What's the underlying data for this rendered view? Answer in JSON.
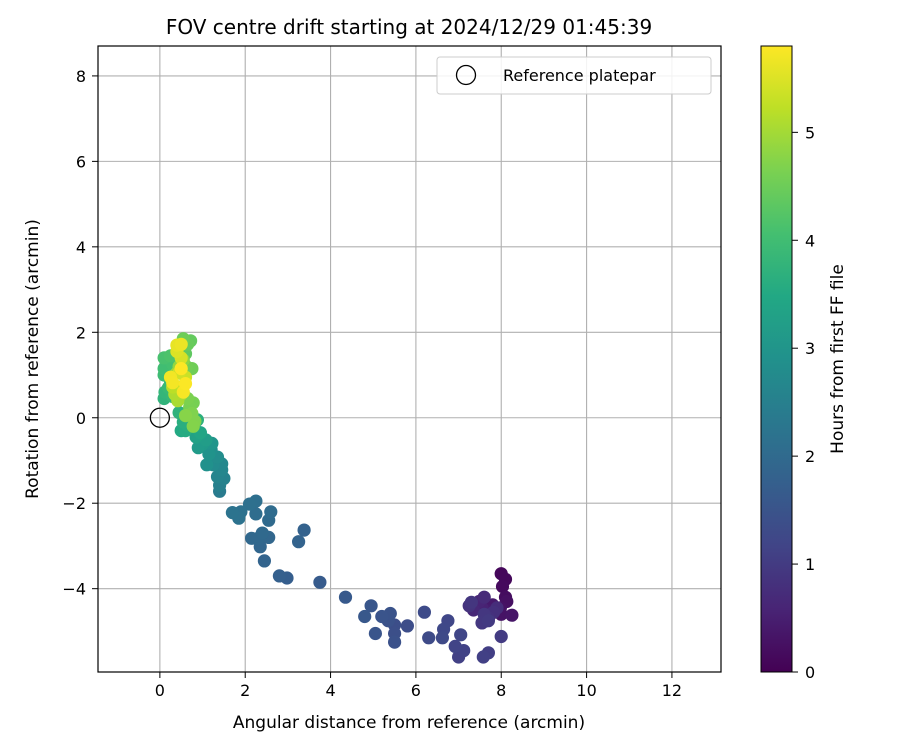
{
  "chart_data": {
    "type": "scatter",
    "title": "FOV centre drift starting at 2024/12/29 01:45:39",
    "xlabel": "Angular distance from reference (arcmin)",
    "ylabel": "Rotation from reference (arcmin)",
    "xlim": [
      -1.45,
      13.15
    ],
    "ylim": [
      -5.95,
      8.7
    ],
    "xticks": [
      0,
      2,
      4,
      6,
      8,
      10,
      12
    ],
    "yticks": [
      -4,
      -2,
      0,
      2,
      4,
      6,
      8
    ],
    "grid": true,
    "legend": {
      "position": "top-right",
      "entries": [
        "Reference platepar"
      ]
    },
    "colorbar": {
      "label": "Hours from first FF file",
      "min": 0,
      "max": 5.8,
      "ticks": [
        0,
        1,
        2,
        3,
        4,
        5
      ],
      "colormap": "viridis"
    },
    "reference_point": {
      "x": 0,
      "y": 0,
      "name": "Reference platepar"
    },
    "points": [
      [
        8.0,
        -3.65,
        0.1
      ],
      [
        8.1,
        -3.78,
        0.12
      ],
      [
        8.03,
        -3.95,
        0.15
      ],
      [
        8.1,
        -4.2,
        0.2
      ],
      [
        8.13,
        -4.3,
        0.25
      ],
      [
        7.98,
        -4.45,
        0.28
      ],
      [
        8.0,
        -4.6,
        0.3
      ],
      [
        8.25,
        -4.62,
        0.33
      ],
      [
        7.8,
        -4.38,
        0.4
      ],
      [
        7.72,
        -4.52,
        0.45
      ],
      [
        7.65,
        -4.75,
        0.5
      ],
      [
        7.55,
        -4.45,
        0.55
      ],
      [
        7.48,
        -4.3,
        0.6
      ],
      [
        7.35,
        -4.5,
        0.65
      ],
      [
        7.6,
        -4.2,
        0.7
      ],
      [
        7.9,
        -4.45,
        0.75
      ],
      [
        7.75,
        -4.6,
        0.78
      ],
      [
        7.82,
        -4.55,
        0.8
      ],
      [
        7.7,
        -4.68,
        0.83
      ],
      [
        7.25,
        -4.4,
        0.85
      ],
      [
        7.3,
        -4.32,
        0.9
      ],
      [
        7.6,
        -4.6,
        0.92
      ],
      [
        7.55,
        -4.8,
        0.95
      ],
      [
        7.7,
        -4.75,
        0.98
      ],
      [
        8.0,
        -5.12,
        1.0
      ],
      [
        7.7,
        -5.5,
        1.05
      ],
      [
        7.58,
        -5.6,
        1.08
      ],
      [
        7.0,
        -5.6,
        1.1
      ],
      [
        7.12,
        -5.45,
        1.13
      ],
      [
        6.92,
        -5.35,
        1.16
      ],
      [
        7.05,
        -5.08,
        1.2
      ],
      [
        6.75,
        -4.75,
        1.22
      ],
      [
        6.65,
        -4.95,
        1.25
      ],
      [
        6.62,
        -5.15,
        1.28
      ],
      [
        6.3,
        -5.15,
        1.3
      ],
      [
        6.2,
        -4.55,
        1.32
      ],
      [
        5.8,
        -4.87,
        1.35
      ],
      [
        5.5,
        -4.85,
        1.38
      ],
      [
        5.5,
        -5.05,
        1.4
      ],
      [
        5.5,
        -5.25,
        1.43
      ],
      [
        5.35,
        -4.75,
        1.45
      ],
      [
        5.4,
        -4.58,
        1.48
      ],
      [
        5.2,
        -4.65,
        1.5
      ],
      [
        5.05,
        -5.05,
        1.52
      ],
      [
        4.95,
        -4.4,
        1.55
      ],
      [
        4.8,
        -4.65,
        1.58
      ],
      [
        4.35,
        -4.2,
        1.62
      ],
      [
        3.75,
        -3.85,
        1.66
      ],
      [
        2.98,
        -3.75,
        1.72
      ],
      [
        2.8,
        -3.7,
        1.76
      ],
      [
        3.38,
        -2.63,
        1.8
      ],
      [
        3.25,
        -2.9,
        1.83
      ],
      [
        2.45,
        -3.35,
        1.86
      ],
      [
        2.35,
        -3.02,
        1.9
      ],
      [
        2.55,
        -2.8,
        1.92
      ],
      [
        2.3,
        -2.82,
        1.94
      ],
      [
        2.15,
        -2.82,
        1.96
      ],
      [
        2.4,
        -2.7,
        1.98
      ],
      [
        2.55,
        -2.4,
        2.0
      ],
      [
        2.6,
        -2.2,
        2.03
      ],
      [
        2.25,
        -2.25,
        2.06
      ],
      [
        2.25,
        -1.95,
        2.1
      ],
      [
        2.1,
        -2.02,
        2.13
      ],
      [
        1.9,
        -2.2,
        2.16
      ],
      [
        1.85,
        -2.35,
        2.18
      ],
      [
        1.7,
        -2.22,
        2.2
      ],
      [
        1.4,
        -1.72,
        2.4
      ],
      [
        1.4,
        -1.58,
        2.5
      ],
      [
        1.5,
        -1.42,
        2.55
      ],
      [
        1.35,
        -1.38,
        2.6
      ],
      [
        1.45,
        -1.22,
        2.65
      ],
      [
        1.45,
        -1.08,
        2.7
      ],
      [
        1.25,
        -1.1,
        2.75
      ],
      [
        1.35,
        -0.92,
        2.8
      ],
      [
        1.2,
        -0.75,
        2.85
      ],
      [
        1.1,
        -1.1,
        2.9
      ],
      [
        1.15,
        -0.85,
        2.95
      ],
      [
        1.22,
        -0.6,
        3.0
      ],
      [
        1.0,
        -0.62,
        3.1
      ],
      [
        0.9,
        -0.7,
        3.15
      ],
      [
        1.08,
        -0.52,
        3.2
      ],
      [
        0.85,
        -0.45,
        3.3
      ],
      [
        0.95,
        -0.35,
        3.4
      ],
      [
        0.8,
        -0.22,
        3.45
      ],
      [
        0.5,
        -0.3,
        3.5
      ],
      [
        0.6,
        -0.3,
        3.55
      ],
      [
        0.65,
        -0.18,
        3.6
      ],
      [
        0.55,
        -0.1,
        3.62
      ],
      [
        0.88,
        -0.05,
        3.65
      ],
      [
        0.45,
        0.12,
        3.7
      ],
      [
        0.65,
        0.08,
        3.72
      ],
      [
        0.1,
        0.45,
        3.75
      ],
      [
        0.12,
        0.6,
        3.8
      ],
      [
        0.3,
        0.5,
        3.85
      ],
      [
        0.2,
        0.7,
        3.88
      ],
      [
        0.25,
        0.85,
        3.9
      ],
      [
        0.1,
        1.0,
        3.95
      ],
      [
        0.1,
        1.15,
        4.0
      ],
      [
        0.3,
        1.25,
        4.05
      ],
      [
        0.1,
        1.4,
        4.1
      ],
      [
        0.25,
        1.45,
        4.15
      ],
      [
        0.45,
        1.55,
        4.2
      ],
      [
        0.55,
        1.6,
        4.3
      ],
      [
        0.6,
        1.5,
        4.35
      ],
      [
        0.72,
        1.8,
        4.4
      ],
      [
        0.65,
        1.72,
        4.45
      ],
      [
        0.55,
        1.85,
        4.5
      ],
      [
        0.75,
        1.15,
        4.52
      ],
      [
        0.62,
        1.2,
        4.55
      ],
      [
        0.78,
        0.35,
        4.6
      ],
      [
        0.7,
        0.25,
        4.62
      ],
      [
        0.65,
        0.45,
        4.65
      ],
      [
        0.75,
        0.1,
        4.68
      ],
      [
        0.82,
        -0.08,
        4.7
      ],
      [
        0.78,
        -0.2,
        4.72
      ],
      [
        0.6,
        0.05,
        4.75
      ],
      [
        0.55,
        1.35,
        4.8
      ],
      [
        0.45,
        1.2,
        4.85
      ],
      [
        0.4,
        1.05,
        4.9
      ],
      [
        0.5,
        0.55,
        5.0
      ],
      [
        0.42,
        0.4,
        5.05
      ],
      [
        0.35,
        0.55,
        5.1
      ],
      [
        0.3,
        0.72,
        5.2
      ],
      [
        0.55,
        0.75,
        5.3
      ],
      [
        0.6,
        0.95,
        5.35
      ],
      [
        0.45,
        1.05,
        5.4
      ],
      [
        0.5,
        1.4,
        5.45
      ],
      [
        0.4,
        1.55,
        5.5
      ],
      [
        0.4,
        1.7,
        5.6
      ],
      [
        0.5,
        1.72,
        5.65
      ],
      [
        0.25,
        0.95,
        5.7
      ],
      [
        0.3,
        0.82,
        5.72
      ],
      [
        0.55,
        0.6,
        5.75
      ],
      [
        0.6,
        0.8,
        5.78
      ],
      [
        0.5,
        1.15,
        5.8
      ]
    ]
  }
}
